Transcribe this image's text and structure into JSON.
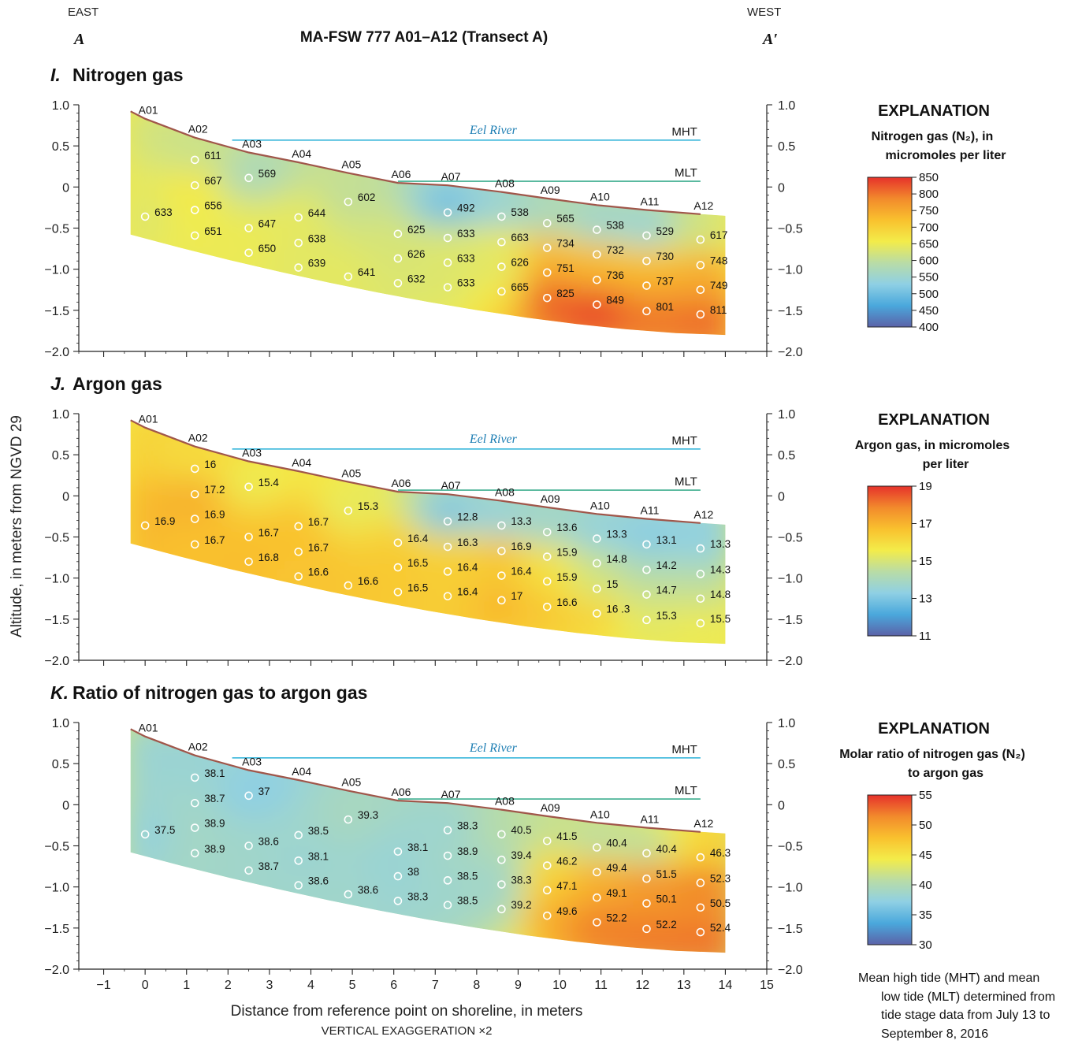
{
  "header": {
    "east": "EAST",
    "west": "WEST",
    "a_left": "A",
    "a_right": "A′",
    "title": "MA-FSW 777 A01–A12 (Transect A)"
  },
  "axes": {
    "ylabel": "Altitude, in meters from NGVD 29",
    "xlabel": "Distance from reference point on shoreline, in meters",
    "vertical_exaggeration": "VERTICAL EXAGGERATION ×2",
    "xlim": [
      -1.6,
      15
    ],
    "ylim": [
      -2.0,
      1.0
    ],
    "x_ticks": [
      -1,
      0,
      1,
      2,
      3,
      4,
      5,
      6,
      7,
      8,
      9,
      10,
      11,
      12,
      13,
      14,
      15
    ],
    "x_tick_labels": [
      "−1",
      "0",
      "1",
      "2",
      "3",
      "4",
      "5",
      "6",
      "7",
      "8",
      "9",
      "10",
      "11",
      "12",
      "13",
      "14",
      "15"
    ],
    "y_ticks": [
      1.0,
      0.5,
      0,
      -0.5,
      -1.0,
      -1.5,
      -2.0
    ],
    "y_tick_labels": [
      "1.0",
      "0.5",
      "0",
      "−0.5",
      "−1.0",
      "−1.5",
      "−2.0"
    ]
  },
  "section": {
    "surface": [
      [
        -0.35,
        0.92
      ],
      [
        0,
        0.83
      ],
      [
        1.2,
        0.6
      ],
      [
        2.5,
        0.42
      ],
      [
        3.7,
        0.3
      ],
      [
        4.9,
        0.17
      ],
      [
        6.1,
        0.05
      ],
      [
        7.3,
        0.02
      ],
      [
        8.6,
        -0.06
      ],
      [
        9.7,
        -0.14
      ],
      [
        10.9,
        -0.22
      ],
      [
        12.1,
        -0.28
      ],
      [
        13.4,
        -0.33
      ]
    ],
    "bottom_west_x": 14.0,
    "bottom_west_y": -1.8,
    "bottom_east_y": -0.58,
    "wells": [
      {
        "name": "A01",
        "x": 0
      },
      {
        "name": "A02",
        "x": 1.2
      },
      {
        "name": "A03",
        "x": 2.5
      },
      {
        "name": "A04",
        "x": 3.7
      },
      {
        "name": "A05",
        "x": 4.9
      },
      {
        "name": "A06",
        "x": 6.1
      },
      {
        "name": "A07",
        "x": 7.3
      },
      {
        "name": "A08",
        "x": 8.6
      },
      {
        "name": "A09",
        "x": 9.7
      },
      {
        "name": "A10",
        "x": 10.9
      },
      {
        "name": "A11",
        "x": 12.1
      },
      {
        "name": "A12",
        "x": 13.4
      }
    ],
    "river_label": "Eel River",
    "mht": {
      "label": "MHT",
      "y": 0.57,
      "x0": 2.1,
      "x1": 13.4
    },
    "mlt": {
      "label": "MLT",
      "y": 0.07,
      "x0": 6.1,
      "x1": 13.4
    }
  },
  "chart_data": [
    {
      "type": "heatmap",
      "panel_letter": "I.",
      "title": "Nitrogen gas",
      "legend": {
        "title": "EXPLANATION",
        "subtitle_lines": [
          "Nitrogen gas (N₂), in",
          "micromoles per liter"
        ],
        "range": [
          400,
          850
        ],
        "ticks": [
          850,
          800,
          750,
          700,
          650,
          600,
          550,
          500,
          450,
          400
        ]
      },
      "points": [
        {
          "x": 0,
          "y": -0.36,
          "value": 633
        },
        {
          "x": 1.2,
          "y": 0.33,
          "value": 611
        },
        {
          "x": 1.2,
          "y": 0.02,
          "value": 667
        },
        {
          "x": 1.2,
          "y": -0.28,
          "value": 656
        },
        {
          "x": 1.2,
          "y": -0.59,
          "value": 651
        },
        {
          "x": 2.5,
          "y": 0.11,
          "value": 569
        },
        {
          "x": 2.5,
          "y": -0.5,
          "value": 647
        },
        {
          "x": 2.5,
          "y": -0.8,
          "value": 650
        },
        {
          "x": 3.7,
          "y": -0.37,
          "value": 644
        },
        {
          "x": 3.7,
          "y": -0.68,
          "value": 638
        },
        {
          "x": 3.7,
          "y": -0.98,
          "value": 639
        },
        {
          "x": 4.9,
          "y": -0.18,
          "value": 602
        },
        {
          "x": 4.9,
          "y": -1.09,
          "value": 641
        },
        {
          "x": 6.1,
          "y": -0.57,
          "value": 625
        },
        {
          "x": 6.1,
          "y": -0.87,
          "value": 626
        },
        {
          "x": 6.1,
          "y": -1.17,
          "value": 632
        },
        {
          "x": 7.3,
          "y": -0.31,
          "value": 492
        },
        {
          "x": 7.3,
          "y": -0.62,
          "value": 633
        },
        {
          "x": 7.3,
          "y": -0.92,
          "value": 633
        },
        {
          "x": 7.3,
          "y": -1.22,
          "value": 633
        },
        {
          "x": 8.6,
          "y": -0.36,
          "value": 538
        },
        {
          "x": 8.6,
          "y": -0.67,
          "value": 663
        },
        {
          "x": 8.6,
          "y": -0.97,
          "value": 626
        },
        {
          "x": 8.6,
          "y": -1.27,
          "value": 665
        },
        {
          "x": 9.7,
          "y": -0.44,
          "value": 565
        },
        {
          "x": 9.7,
          "y": -0.74,
          "value": 734
        },
        {
          "x": 9.7,
          "y": -1.04,
          "value": 751
        },
        {
          "x": 9.7,
          "y": -1.35,
          "value": 825
        },
        {
          "x": 10.9,
          "y": -0.52,
          "value": 538
        },
        {
          "x": 10.9,
          "y": -0.82,
          "value": 732
        },
        {
          "x": 10.9,
          "y": -1.13,
          "value": 736
        },
        {
          "x": 10.9,
          "y": -1.43,
          "value": 849
        },
        {
          "x": 12.1,
          "y": -0.59,
          "value": 529
        },
        {
          "x": 12.1,
          "y": -0.9,
          "value": 730
        },
        {
          "x": 12.1,
          "y": -1.2,
          "value": 737
        },
        {
          "x": 12.1,
          "y": -1.51,
          "value": 801
        },
        {
          "x": 13.4,
          "y": -0.64,
          "value": 617
        },
        {
          "x": 13.4,
          "y": -0.95,
          "value": 748
        },
        {
          "x": 13.4,
          "y": -1.25,
          "value": 749
        },
        {
          "x": 13.4,
          "y": -1.55,
          "value": 811
        }
      ]
    },
    {
      "type": "heatmap",
      "panel_letter": "J.",
      "title": "Argon gas",
      "legend": {
        "title": "EXPLANATION",
        "subtitle_lines": [
          "Argon gas, in micromoles",
          "per liter"
        ],
        "range": [
          11,
          19
        ],
        "ticks": [
          19,
          17,
          15,
          13,
          11
        ]
      },
      "points": [
        {
          "x": 0,
          "y": -0.36,
          "value": "16.9"
        },
        {
          "x": 1.2,
          "y": 0.33,
          "value": "16"
        },
        {
          "x": 1.2,
          "y": 0.02,
          "value": "17.2"
        },
        {
          "x": 1.2,
          "y": -0.28,
          "value": "16.9"
        },
        {
          "x": 1.2,
          "y": -0.59,
          "value": "16.7"
        },
        {
          "x": 2.5,
          "y": 0.11,
          "value": "15.4"
        },
        {
          "x": 2.5,
          "y": -0.5,
          "value": "16.7"
        },
        {
          "x": 2.5,
          "y": -0.8,
          "value": "16.8"
        },
        {
          "x": 3.7,
          "y": -0.37,
          "value": "16.7"
        },
        {
          "x": 3.7,
          "y": -0.68,
          "value": "16.7"
        },
        {
          "x": 3.7,
          "y": -0.98,
          "value": "16.6"
        },
        {
          "x": 4.9,
          "y": -0.18,
          "value": "15.3"
        },
        {
          "x": 4.9,
          "y": -1.09,
          "value": "16.6"
        },
        {
          "x": 6.1,
          "y": -0.57,
          "value": "16.4"
        },
        {
          "x": 6.1,
          "y": -0.87,
          "value": "16.5"
        },
        {
          "x": 6.1,
          "y": -1.17,
          "value": "16.5"
        },
        {
          "x": 7.3,
          "y": -0.31,
          "value": "12.8"
        },
        {
          "x": 7.3,
          "y": -0.62,
          "value": "16.3"
        },
        {
          "x": 7.3,
          "y": -0.92,
          "value": "16.4"
        },
        {
          "x": 7.3,
          "y": -1.22,
          "value": "16.4"
        },
        {
          "x": 8.6,
          "y": -0.36,
          "value": "13.3"
        },
        {
          "x": 8.6,
          "y": -0.67,
          "value": "16.9"
        },
        {
          "x": 8.6,
          "y": -0.97,
          "value": "16.4"
        },
        {
          "x": 8.6,
          "y": -1.27,
          "value": "17"
        },
        {
          "x": 9.7,
          "y": -0.44,
          "value": "13.6"
        },
        {
          "x": 9.7,
          "y": -0.74,
          "value": "15.9"
        },
        {
          "x": 9.7,
          "y": -1.04,
          "value": "15.9"
        },
        {
          "x": 9.7,
          "y": -1.35,
          "value": "16.6"
        },
        {
          "x": 10.9,
          "y": -0.52,
          "value": "13.3"
        },
        {
          "x": 10.9,
          "y": -0.82,
          "value": "14.8"
        },
        {
          "x": 10.9,
          "y": -1.13,
          "value": "15"
        },
        {
          "x": 10.9,
          "y": -1.43,
          "value": "16 .3"
        },
        {
          "x": 12.1,
          "y": -0.59,
          "value": "13.1"
        },
        {
          "x": 12.1,
          "y": -0.9,
          "value": "14.2"
        },
        {
          "x": 12.1,
          "y": -1.2,
          "value": "14.7"
        },
        {
          "x": 12.1,
          "y": -1.51,
          "value": "15.3"
        },
        {
          "x": 13.4,
          "y": -0.64,
          "value": "13.3"
        },
        {
          "x": 13.4,
          "y": -0.95,
          "value": "14.3"
        },
        {
          "x": 13.4,
          "y": -1.25,
          "value": "14.8"
        },
        {
          "x": 13.4,
          "y": -1.55,
          "value": "15.5"
        }
      ]
    },
    {
      "type": "heatmap",
      "panel_letter": "K.",
      "title": "Ratio of nitrogen gas to argon gas",
      "legend": {
        "title": "EXPLANATION",
        "subtitle_lines": [
          "Molar ratio of nitrogen gas (N₂)",
          "to argon gas"
        ],
        "range": [
          30,
          55
        ],
        "ticks": [
          55,
          50,
          45,
          40,
          35,
          30
        ]
      },
      "points": [
        {
          "x": 0,
          "y": -0.36,
          "value": "37.5"
        },
        {
          "x": 1.2,
          "y": 0.33,
          "value": "38.1"
        },
        {
          "x": 1.2,
          "y": 0.02,
          "value": "38.7"
        },
        {
          "x": 1.2,
          "y": -0.28,
          "value": "38.9"
        },
        {
          "x": 1.2,
          "y": -0.59,
          "value": "38.9"
        },
        {
          "x": 2.5,
          "y": 0.11,
          "value": "37"
        },
        {
          "x": 2.5,
          "y": -0.5,
          "value": "38.6"
        },
        {
          "x": 2.5,
          "y": -0.8,
          "value": "38.7"
        },
        {
          "x": 3.7,
          "y": -0.37,
          "value": "38.5"
        },
        {
          "x": 3.7,
          "y": -0.68,
          "value": "38.1"
        },
        {
          "x": 3.7,
          "y": -0.98,
          "value": "38.6"
        },
        {
          "x": 4.9,
          "y": -0.18,
          "value": "39.3"
        },
        {
          "x": 4.9,
          "y": -1.09,
          "value": "38.6"
        },
        {
          "x": 6.1,
          "y": -0.57,
          "value": "38.1"
        },
        {
          "x": 6.1,
          "y": -0.87,
          "value": "38"
        },
        {
          "x": 6.1,
          "y": -1.17,
          "value": "38.3"
        },
        {
          "x": 7.3,
          "y": -0.31,
          "value": "38.3"
        },
        {
          "x": 7.3,
          "y": -0.62,
          "value": "38.9"
        },
        {
          "x": 7.3,
          "y": -0.92,
          "value": "38.5"
        },
        {
          "x": 7.3,
          "y": -1.22,
          "value": "38.5"
        },
        {
          "x": 8.6,
          "y": -0.36,
          "value": "40.5"
        },
        {
          "x": 8.6,
          "y": -0.67,
          "value": "39.4"
        },
        {
          "x": 8.6,
          "y": -0.97,
          "value": "38.3"
        },
        {
          "x": 8.6,
          "y": -1.27,
          "value": "39.2"
        },
        {
          "x": 9.7,
          "y": -0.44,
          "value": "41.5"
        },
        {
          "x": 9.7,
          "y": -0.74,
          "value": "46.2"
        },
        {
          "x": 9.7,
          "y": -1.04,
          "value": "47.1"
        },
        {
          "x": 9.7,
          "y": -1.35,
          "value": "49.6"
        },
        {
          "x": 10.9,
          "y": -0.52,
          "value": "40.4"
        },
        {
          "x": 10.9,
          "y": -0.82,
          "value": "49.4"
        },
        {
          "x": 10.9,
          "y": -1.13,
          "value": "49.1"
        },
        {
          "x": 10.9,
          "y": -1.43,
          "value": "52.2"
        },
        {
          "x": 12.1,
          "y": -0.59,
          "value": "40.4"
        },
        {
          "x": 12.1,
          "y": -0.9,
          "value": "51.5"
        },
        {
          "x": 12.1,
          "y": -1.2,
          "value": "50.1"
        },
        {
          "x": 12.1,
          "y": -1.51,
          "value": "52.2"
        },
        {
          "x": 13.4,
          "y": -0.64,
          "value": "46.3"
        },
        {
          "x": 13.4,
          "y": -0.95,
          "value": "52.3"
        },
        {
          "x": 13.4,
          "y": -1.25,
          "value": "50.5"
        },
        {
          "x": 13.4,
          "y": -1.55,
          "value": "52.4"
        }
      ]
    }
  ],
  "note_lines": [
    "Mean high tide (MHT) and mean",
    "low tide (MLT) determined from",
    "tide stage data from July 13 to",
    "September 8, 2016"
  ],
  "colors": {
    "surface_line": "#a0564a",
    "mht_line": "#29b0d8",
    "mlt_line": "#3fae8f",
    "river_text": "#1f7fb4",
    "ramp": [
      "#5b62a8",
      "#4aa8dc",
      "#8fd0e4",
      "#b9dca6",
      "#f3ec4a",
      "#f9c12e",
      "#f28a2c",
      "#e6322b"
    ]
  }
}
